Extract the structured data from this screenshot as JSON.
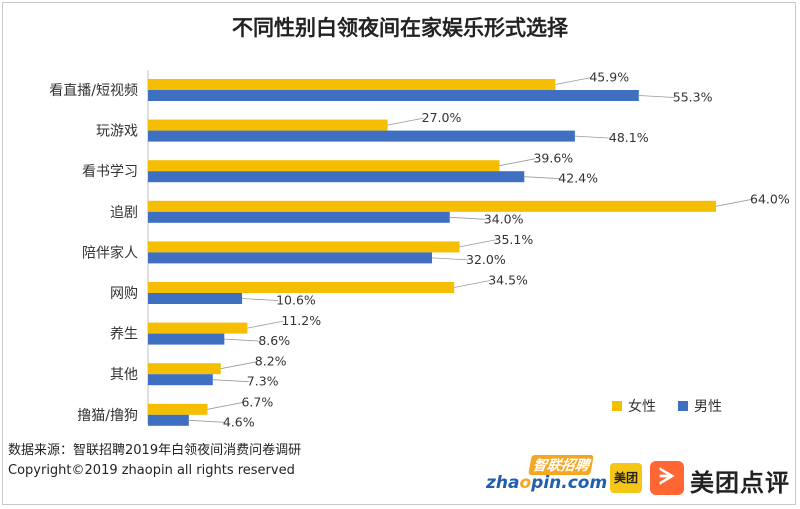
{
  "chart_data": {
    "type": "bar",
    "orientation": "horizontal",
    "title": "不同性别白领夜间在家娱乐形式选择",
    "categories": [
      "看直播/短视频",
      "玩游戏",
      "看书学习",
      "追剧",
      "陪伴家人",
      "网购",
      "养生",
      "其他",
      "撸猫/撸狗"
    ],
    "series": [
      {
        "name": "女性",
        "color": "#f5be00",
        "values": [
          45.9,
          27.0,
          39.6,
          64.0,
          35.1,
          34.5,
          11.2,
          8.2,
          6.7
        ]
      },
      {
        "name": "男性",
        "color": "#3e6fc1",
        "values": [
          55.3,
          48.1,
          42.4,
          34.0,
          32.0,
          10.6,
          8.6,
          7.3,
          4.6
        ]
      }
    ],
    "value_suffix": "%",
    "xlim": [
      0,
      70
    ],
    "legend_position": "bottom-right",
    "grid": false
  },
  "source": {
    "line1": "数据来源：智联招聘2019年白领夜间消费问卷调研",
    "line2": "Copyright©2019 zhaopin all rights reserved"
  },
  "logos": {
    "zhaopin_cn": "智联招聘",
    "zhaopin_en_a": "zha",
    "zhaopin_en_o": "o",
    "zhaopin_en_b": "pin.com",
    "meituan": "美团",
    "dianping_icon": "ᗒ",
    "dianping": "美团点评"
  }
}
